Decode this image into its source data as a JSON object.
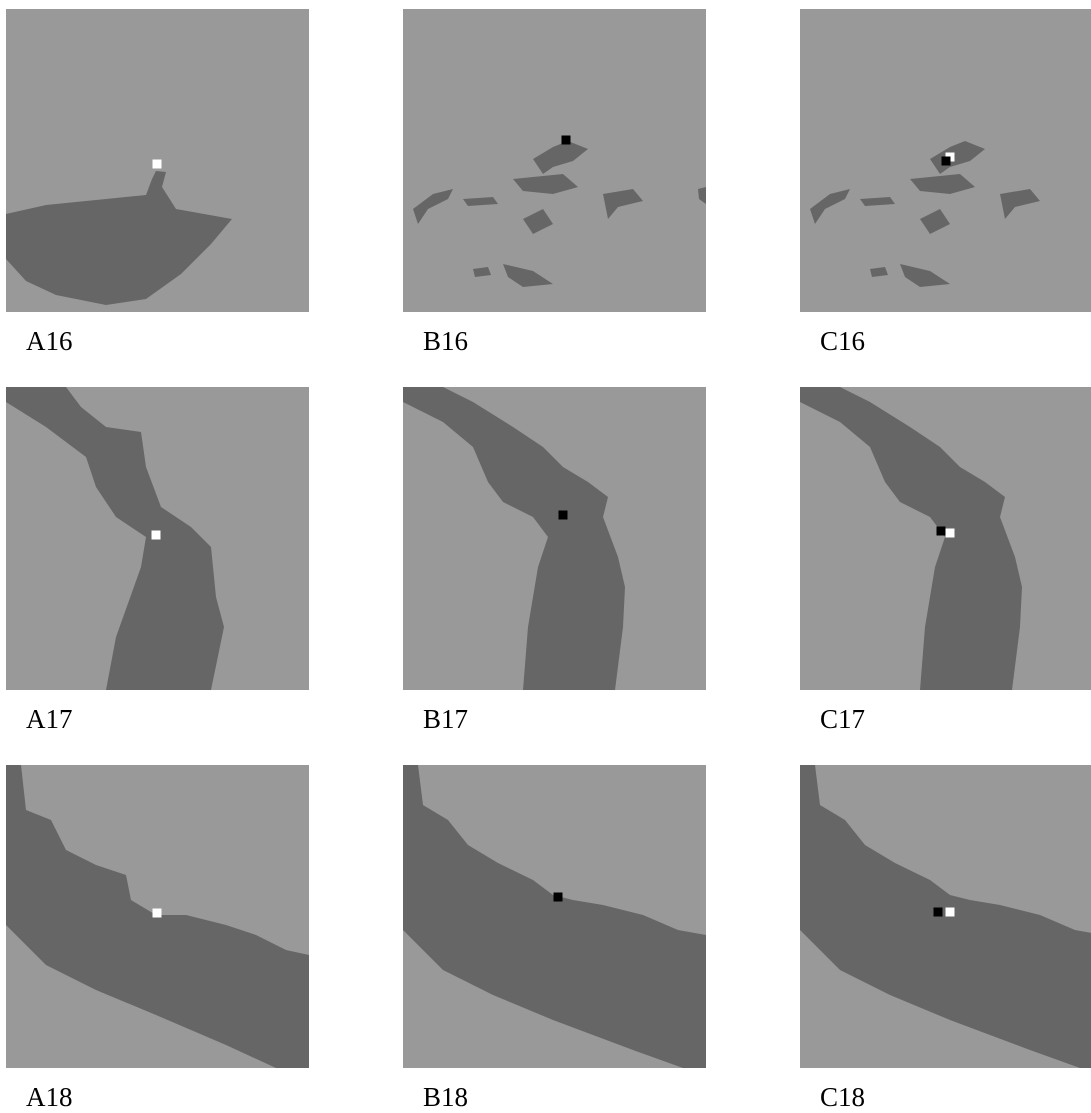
{
  "rows": [
    [
      "A16",
      "B16",
      "C16"
    ],
    [
      "A17",
      "B17",
      "C17"
    ],
    [
      "A18",
      "B18",
      "C18"
    ]
  ]
}
